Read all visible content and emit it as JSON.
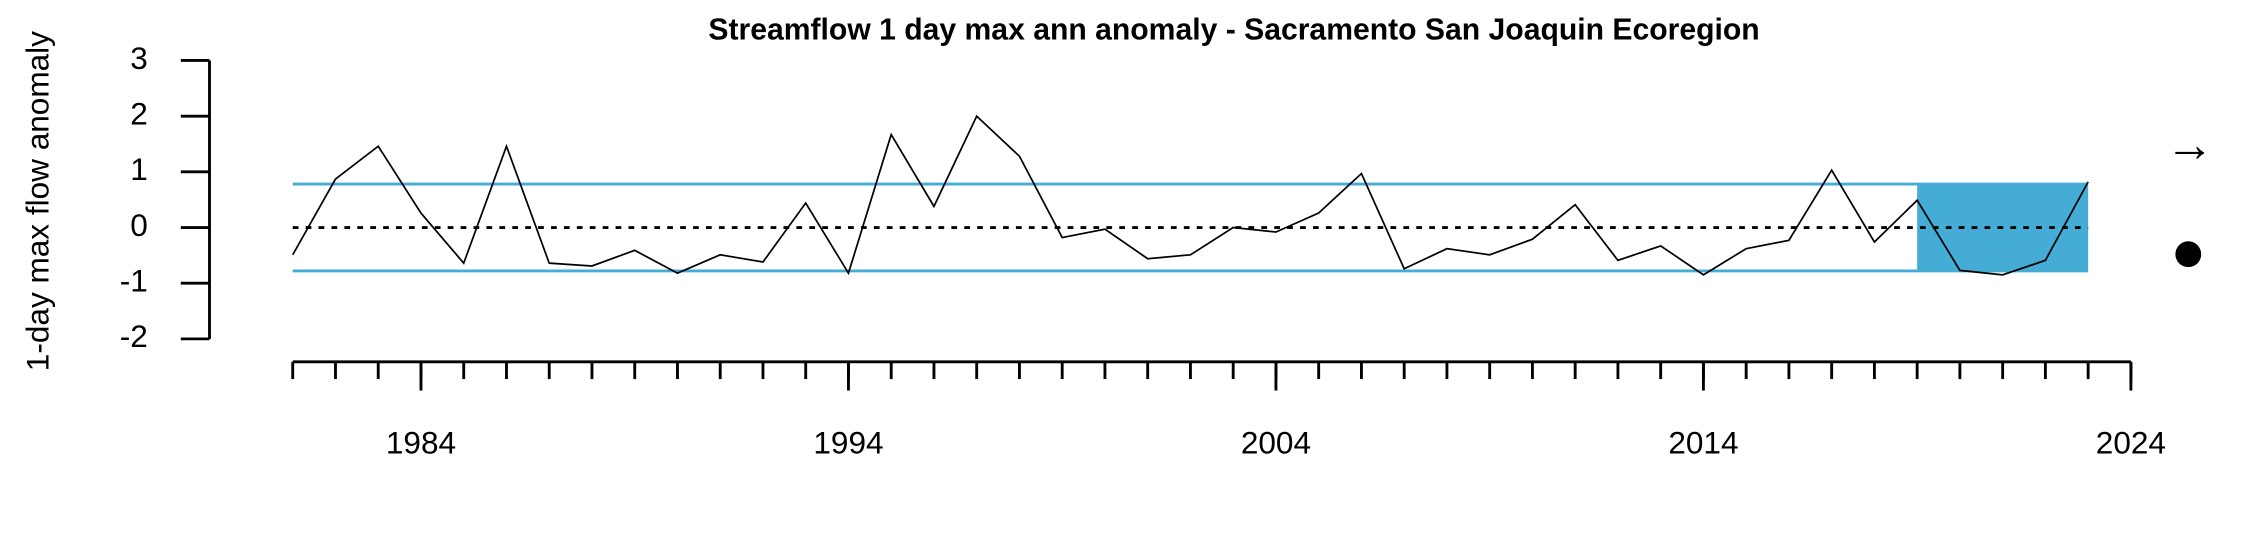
{
  "chart_data": {
    "type": "line",
    "title": "Streamflow 1 day max ann anomaly - Sacramento San Joaquin Ecoregion",
    "y_label": "1-day max flow anomaly",
    "x": [
      1981,
      1982,
      1983,
      1984,
      1985,
      1986,
      1987,
      1988,
      1989,
      1990,
      1991,
      1992,
      1993,
      1994,
      1995,
      1996,
      1997,
      1998,
      1999,
      2000,
      2001,
      2002,
      2003,
      2004,
      2005,
      2006,
      2007,
      2008,
      2009,
      2010,
      2011,
      2012,
      2013,
      2014,
      2015,
      2016,
      2017,
      2018,
      2019,
      2020,
      2021,
      2022,
      2023
    ],
    "series": [
      {
        "name": "anomaly",
        "color": "#000000",
        "values": [
          -0.49,
          0.87,
          1.46,
          0.26,
          -0.64,
          1.46,
          -0.64,
          -0.69,
          -0.41,
          -0.82,
          -0.49,
          -0.62,
          0.44,
          -0.82,
          1.67,
          0.38,
          2.0,
          1.28,
          -0.18,
          -0.03,
          -0.56,
          -0.49,
          0,
          -0.08,
          0.26,
          0.97,
          -0.74,
          -0.38,
          -0.49,
          -0.21,
          0.41,
          -0.59,
          -0.33,
          -0.85,
          -0.38,
          -0.23,
          1.03,
          -0.26,
          0.49,
          -0.77,
          -0.85,
          -0.59,
          0.82
        ]
      }
    ],
    "band": [
      -0.78,
      0.78
    ],
    "band_color": "#45acd6",
    "highlight_x": [
      2019,
      2023
    ],
    "reference_line": 0,
    "xlim": [
      1981,
      2024
    ],
    "xticks": [
      1984,
      1994,
      2004,
      2014,
      2024
    ],
    "ylim": [
      -2,
      3
    ],
    "yticks": [
      3,
      2,
      1,
      0,
      -1,
      -2
    ],
    "trend_symbol": "→"
  }
}
